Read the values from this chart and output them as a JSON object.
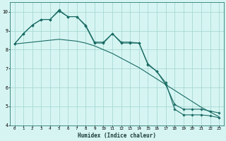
{
  "xlabel": "Humidex (Indice chaleur)",
  "bg_color": "#d6f5f2",
  "plot_bg_color": "#d6f5f2",
  "grid_color": "#a8d8d4",
  "line_color": "#1a6b64",
  "ylim": [
    4,
    10.5
  ],
  "xlim": [
    -0.5,
    23.5
  ],
  "yticks": [
    4,
    5,
    6,
    7,
    8,
    9,
    10
  ],
  "xticks": [
    0,
    1,
    2,
    3,
    4,
    5,
    6,
    7,
    8,
    9,
    10,
    11,
    12,
    13,
    14,
    15,
    16,
    17,
    18,
    19,
    20,
    21,
    22,
    23
  ],
  "series1_x": [
    0,
    1,
    2,
    3,
    4,
    5,
    6,
    7,
    8,
    9,
    10,
    11,
    12,
    13,
    14,
    15,
    16,
    17,
    18,
    19,
    20,
    21,
    22,
    23
  ],
  "series1_y": [
    8.3,
    8.85,
    9.3,
    9.6,
    9.6,
    10.1,
    9.75,
    9.75,
    9.3,
    8.4,
    8.4,
    8.85,
    8.4,
    8.4,
    8.35,
    7.25,
    6.85,
    6.25,
    4.85,
    4.55,
    4.55,
    4.55,
    4.5,
    4.4
  ],
  "series2_x": [
    0,
    1,
    2,
    3,
    4,
    5,
    6,
    7,
    8,
    9,
    10,
    11,
    12,
    13,
    14,
    15,
    16,
    17,
    18,
    19,
    20,
    21,
    22,
    23
  ],
  "series2_y": [
    8.3,
    8.35,
    8.4,
    8.45,
    8.5,
    8.55,
    8.5,
    8.45,
    8.35,
    8.2,
    8.0,
    7.8,
    7.55,
    7.3,
    7.05,
    6.75,
    6.45,
    6.15,
    5.85,
    5.55,
    5.25,
    4.95,
    4.7,
    4.45
  ],
  "series3_x": [
    0,
    1,
    2,
    3,
    4,
    5,
    6,
    7,
    8,
    9,
    10,
    11,
    12,
    13,
    14,
    15,
    16,
    17,
    18,
    19,
    20,
    21,
    22,
    23
  ],
  "series3_y": [
    8.3,
    8.85,
    9.3,
    9.6,
    9.6,
    10.05,
    9.75,
    9.75,
    9.25,
    8.35,
    8.35,
    8.85,
    8.35,
    8.35,
    8.35,
    7.2,
    6.85,
    6.15,
    5.1,
    4.85,
    4.85,
    4.85,
    4.75,
    4.65
  ]
}
